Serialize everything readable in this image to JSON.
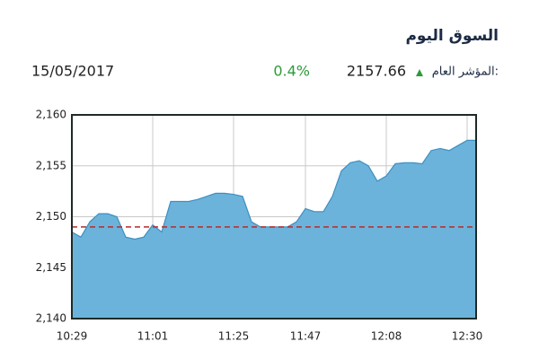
{
  "chart_data": {
    "type": "area",
    "title": "السوق اليوم",
    "index_label": "المؤشر العام:",
    "index_value": "2157.66",
    "change": "0.4%",
    "date": "15/05/2017",
    "categories": [
      "10:29",
      null,
      null,
      null,
      null,
      null,
      null,
      null,
      null,
      "11:01",
      null,
      null,
      null,
      null,
      null,
      null,
      null,
      null,
      "11:25",
      null,
      null,
      null,
      null,
      null,
      null,
      null,
      "11:47",
      null,
      null,
      null,
      null,
      null,
      null,
      null,
      null,
      "12:08",
      null,
      null,
      null,
      null,
      null,
      null,
      null,
      null,
      "12:30",
      null
    ],
    "values": [
      2148.5,
      2148,
      2149.5,
      2150.3,
      2150.3,
      2150,
      2148,
      2147.8,
      2148,
      2149.2,
      2148.5,
      2151.5,
      2151.5,
      2151.5,
      2151.7,
      2152,
      2152.3,
      2152.3,
      2152.2,
      2152,
      2149.5,
      2149,
      2149,
      2149,
      2149,
      2149.5,
      2150.8,
      2150.5,
      2150.5,
      2152,
      2154.5,
      2155.3,
      2155.5,
      2155,
      2153.5,
      2154,
      2155.2,
      2155.3,
      2155.3,
      2155.2,
      2156.5,
      2156.7,
      2156.5,
      2157,
      2157.5,
      2157.5
    ],
    "color": "#6bb3db",
    "reference_line": 2149,
    "reference_color": "#b52b2b",
    "ylim": [
      2140,
      2160
    ],
    "yticks": [
      {
        "value": 2140,
        "label": "2,140"
      },
      {
        "value": 2145,
        "label": "2,145"
      },
      {
        "value": 2150,
        "label": "2,150"
      },
      {
        "value": 2155,
        "label": "2,155"
      },
      {
        "value": 2160,
        "label": "2,160"
      }
    ],
    "grid": true
  }
}
